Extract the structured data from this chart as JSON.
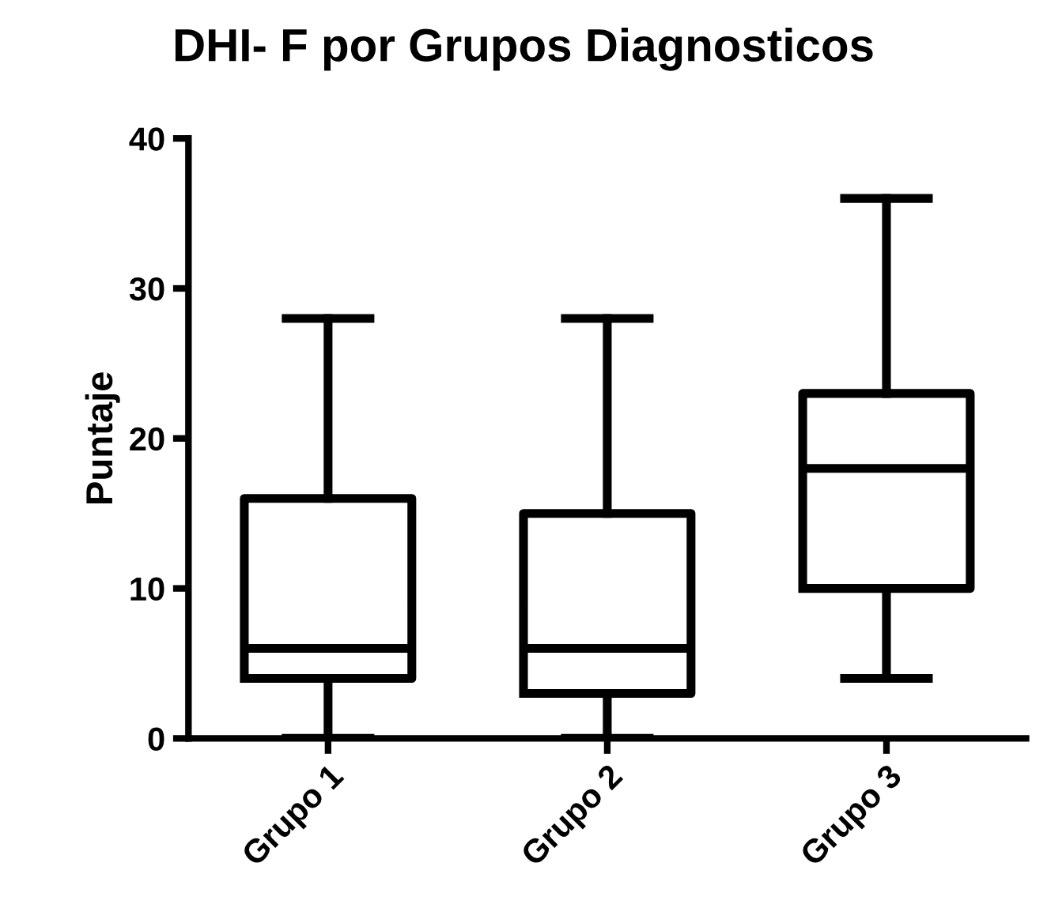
{
  "chart_data": {
    "type": "box",
    "title": "DHI- F por Grupos Diagnosticos",
    "ylabel": "Puntaje",
    "categories": [
      "Grupo 1",
      "Grupo 2",
      "Grupo 3"
    ],
    "boxes": [
      {
        "low": 0,
        "q1": 4,
        "median": 6,
        "q3": 16,
        "high": 28
      },
      {
        "low": 0,
        "q1": 3,
        "median": 6,
        "q3": 15,
        "high": 28
      },
      {
        "low": 4,
        "q1": 10,
        "median": 18,
        "q3": 23,
        "high": 36
      }
    ],
    "color": "#000000",
    "ylim": [
      0,
      40
    ],
    "yticks": [
      0,
      10,
      20,
      30,
      40
    ],
    "grid": false
  }
}
